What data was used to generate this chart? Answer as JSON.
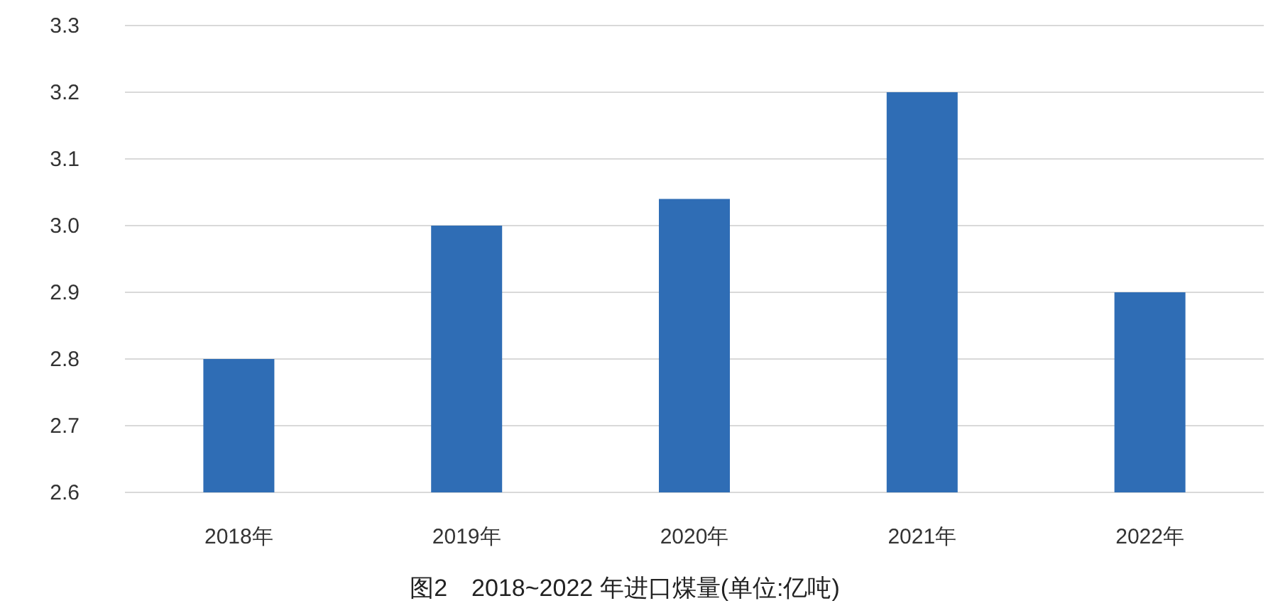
{
  "chart_data": {
    "type": "bar",
    "title": "图2　2018~2022 年进口煤量(单位:亿吨)",
    "categories": [
      "2018年",
      "2019年",
      "2020年",
      "2021年",
      "2022年"
    ],
    "values": [
      2.8,
      3.0,
      3.04,
      3.2,
      2.9
    ],
    "color": "#2f6db5",
    "ylim": [
      2.6,
      3.3
    ],
    "yticks": [
      {
        "value": 2.6,
        "label": "2.6"
      },
      {
        "value": 2.7,
        "label": "2.7"
      },
      {
        "value": 2.8,
        "label": "2.8"
      },
      {
        "value": 2.9,
        "label": "2.9"
      },
      {
        "value": 3.0,
        "label": "3.0"
      },
      {
        "value": 3.1,
        "label": "3.1"
      },
      {
        "value": 3.2,
        "label": "3.2"
      },
      {
        "value": 3.3,
        "label": "3.3"
      }
    ],
    "grid": "y"
  }
}
